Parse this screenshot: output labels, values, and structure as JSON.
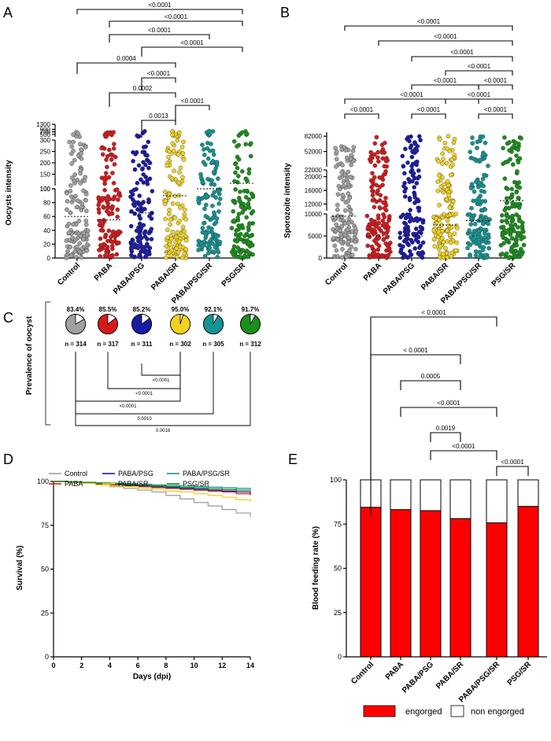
{
  "chart_data": [
    {
      "panel": "A",
      "type": "scatter",
      "ylabel": "Oocysts intensity",
      "categories": [
        "Control",
        "PABA",
        "PABA/PSG",
        "PABA/SR",
        "PABA/PSG/SR",
        "PSG/SR"
      ],
      "colors": [
        "#a0a0a0",
        "#d7191c",
        "#1a1aa6",
        "#f2d21f",
        "#149494",
        "#1a8f1a"
      ],
      "y_segments": [
        {
          "range": [
            0,
            100
          ],
          "ticks": [
            0,
            20,
            40,
            60,
            80,
            100
          ]
        },
        {
          "range": [
            100,
            300
          ],
          "ticks": [
            100,
            150,
            200,
            250,
            300
          ]
        },
        {
          "range": [
            300,
            1300
          ],
          "ticks": [
            500,
            700,
            900,
            1300
          ]
        }
      ],
      "medians": [
        60,
        55,
        65,
        90,
        100,
        110
      ],
      "comparisons": [
        {
          "from": 0,
          "to": 5,
          "label": "<0.0001"
        },
        {
          "from": 1,
          "to": 5,
          "label": "<0.0001"
        },
        {
          "from": 1,
          "to": 4,
          "label": "<0.0001"
        },
        {
          "from": 2,
          "to": 5,
          "label": "<0.0001"
        },
        {
          "from": 0,
          "to": 3,
          "label": "0.0004"
        },
        {
          "from": 2,
          "to": 3,
          "label": "<0.0001"
        },
        {
          "from": 1,
          "to": 3,
          "label": "0.0002"
        },
        {
          "from": 3,
          "to": 4,
          "label": "<0.0001"
        },
        {
          "from": 2,
          "to": 3,
          "label": "0.0013"
        }
      ]
    },
    {
      "panel": "B",
      "type": "scatter",
      "ylabel": "Sporozoite intensity",
      "categories": [
        "Control",
        "PABA",
        "PABA/PSG",
        "PABA/SR",
        "PABA/PSG/SR",
        "PSG/SR"
      ],
      "y_segments": [
        {
          "range": [
            0,
            10000
          ],
          "ticks": [
            0,
            5000,
            10000
          ]
        },
        {
          "range": [
            10000,
            22000
          ],
          "ticks": [
            12000,
            16000,
            20000
          ]
        },
        {
          "range": [
            22000,
            90000
          ],
          "ticks": [
            22000,
            52000,
            82000
          ]
        }
      ],
      "medians": [
        9500,
        5000,
        5000,
        7500,
        8500,
        13000
      ],
      "comparisons": [
        {
          "from": 0,
          "to": 5,
          "label": "<0.0001"
        },
        {
          "from": 1,
          "to": 5,
          "label": "<0.0001"
        },
        {
          "from": 2,
          "to": 5,
          "label": "<0.0001"
        },
        {
          "from": 3,
          "to": 5,
          "label": "<0.0001"
        },
        {
          "from": 2,
          "to": 4,
          "label": "<0.0001"
        },
        {
          "from": 4,
          "to": 5,
          "label": "<0.0001"
        },
        {
          "from": 0,
          "to": 4,
          "label": "<0.0001"
        },
        {
          "from": 3,
          "to": 5,
          "label": "<0.0001"
        },
        {
          "from": 0,
          "to": 1,
          "label": "<0.0001"
        },
        {
          "from": 2,
          "to": 3,
          "label": "<0.0001"
        },
        {
          "from": 4,
          "to": 5,
          "label": "<0.0001"
        }
      ]
    },
    {
      "panel": "C",
      "type": "pie",
      "ylabel": "Prevalence of oocyst",
      "items": [
        {
          "pct": "83.4%",
          "n": "n = 314",
          "value": 83.4
        },
        {
          "pct": "85.5%",
          "n": "n = 317",
          "value": 85.5
        },
        {
          "pct": "85.2%",
          "n": "n = 311",
          "value": 85.2
        },
        {
          "pct": "95.0%",
          "n": "n = 302",
          "value": 95.0
        },
        {
          "pct": "92.1%",
          "n": "n = 305",
          "value": 92.1
        },
        {
          "pct": "91.7%",
          "n": "n = 312",
          "value": 91.7
        }
      ],
      "comparisons": [
        {
          "from": 2,
          "to": 3,
          "label": "<0.0001"
        },
        {
          "from": 1,
          "to": 3,
          "label": "<0.0001"
        },
        {
          "from": 0,
          "to": 3,
          "label": "<0.0001"
        },
        {
          "from": 0,
          "to": 4,
          "label": "0.0010"
        },
        {
          "from": 0,
          "to": 5,
          "label": "0.0018"
        }
      ]
    },
    {
      "panel": "D",
      "type": "line",
      "xlabel": "Days (dpi)",
      "ylabel": "Survival (%)",
      "xlim": [
        0,
        14
      ],
      "ylim": [
        0,
        100
      ],
      "xticks": [
        0,
        2,
        4,
        6,
        8,
        10,
        12,
        14
      ],
      "yticks": [
        0,
        25,
        50,
        75,
        100
      ],
      "x": [
        0,
        1,
        2,
        3,
        4,
        5,
        6,
        7,
        8,
        9,
        10,
        11,
        12,
        13,
        14
      ],
      "series": [
        {
          "name": "Control",
          "color": "#a0a0a0",
          "values": [
            100,
            99.5,
            99,
            98,
            97,
            96,
            95,
            94,
            92,
            90,
            88,
            86,
            84,
            82,
            80
          ]
        },
        {
          "name": "PABA",
          "color": "#d7191c",
          "values": [
            100,
            99.5,
            99,
            98.5,
            98,
            97.5,
            97,
            96.5,
            96,
            95.5,
            95,
            94.5,
            94,
            93,
            92
          ]
        },
        {
          "name": "PABA/PSG",
          "color": "#1a1aa6",
          "values": [
            100,
            99.7,
            99.4,
            99,
            98.5,
            98,
            97.5,
            97,
            96.5,
            96,
            95.5,
            95,
            94.5,
            94,
            93
          ]
        },
        {
          "name": "PABA/SR",
          "color": "#f2d21f",
          "values": [
            100,
            99.5,
            99,
            98,
            97.5,
            97,
            96,
            95.5,
            94.5,
            94,
            93,
            92,
            91,
            89.5,
            88
          ]
        },
        {
          "name": "PABA/PSG/SR",
          "color": "#149494",
          "values": [
            100,
            99.8,
            99.5,
            99.2,
            99,
            98.7,
            98.4,
            98,
            97.7,
            97.4,
            97,
            96.7,
            96.4,
            96,
            95.5
          ]
        },
        {
          "name": "PSG/SR",
          "color": "#1a8f1a",
          "values": [
            100,
            99.7,
            99.4,
            99,
            98.6,
            98.2,
            97.8,
            97.4,
            97,
            96.6,
            96.2,
            95.8,
            95.4,
            95,
            94.5
          ]
        }
      ]
    },
    {
      "panel": "E",
      "type": "bar",
      "ylabel": "Blood feeding rate (%)",
      "categories": [
        "Control",
        "PABA",
        "PABA/PSG",
        "PABA/SR",
        "PABA/PSG/SR",
        "PSG/SR"
      ],
      "ylim": [
        0,
        100
      ],
      "yticks": [
        0,
        25,
        50,
        75,
        100
      ],
      "series": [
        {
          "name": "engorged",
          "color": "#ff0000",
          "values": [
            84.5,
            83.2,
            82.6,
            78.1,
            75.7,
            85.0
          ]
        },
        {
          "name": "non engorged",
          "color": "#ffffff",
          "values": [
            15.5,
            16.8,
            17.4,
            21.9,
            24.3,
            15.0
          ]
        }
      ],
      "comparisons": [
        {
          "from": 0,
          "to": 4,
          "label": "< 0.0001"
        },
        {
          "from": 0,
          "to": 3,
          "label": "< 0.0001"
        },
        {
          "from": 1,
          "to": 3,
          "label": "0.0005"
        },
        {
          "from": 1,
          "to": 4,
          "label": "<0.0001"
        },
        {
          "from": 2,
          "to": 3,
          "label": "0.0019"
        },
        {
          "from": 2,
          "to": 4,
          "label": "<0.0001"
        },
        {
          "from": 4,
          "to": 5,
          "label": "<0.0001"
        }
      ]
    }
  ],
  "panel_labels": [
    "A",
    "B",
    "C",
    "D",
    "E"
  ]
}
